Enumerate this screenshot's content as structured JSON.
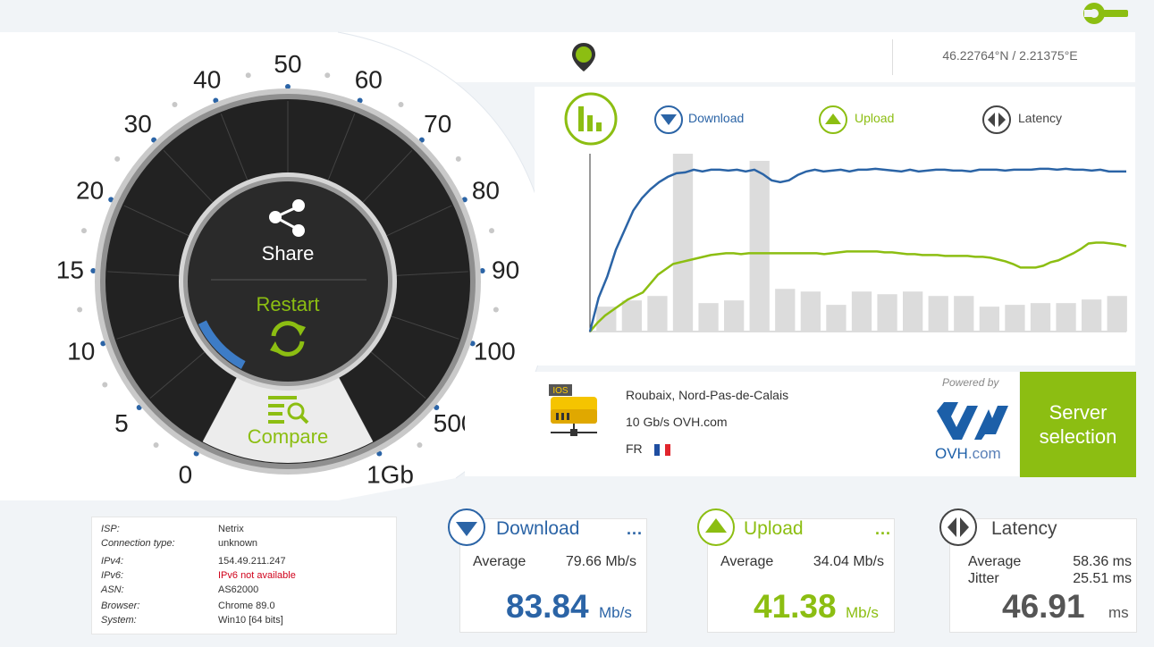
{
  "location": {
    "coords": "46.22764°N / 2.21375°E"
  },
  "gauge": {
    "labels": [
      "0",
      "5",
      "10",
      "15",
      "20",
      "30",
      "40",
      "50",
      "60",
      "70",
      "80",
      "90",
      "100",
      "500",
      "1Gb"
    ],
    "share_label": "Share",
    "restart_label": "Restart",
    "compare_label": "Compare",
    "progress": 0.12
  },
  "chart": {
    "legend": {
      "download": "Download",
      "upload": "Upload",
      "latency": "Latency"
    },
    "colors": {
      "download": "#2b64a6",
      "upload": "#8cbe12",
      "latency": "#444444",
      "bars": "#dcdcdc"
    }
  },
  "chart_data": {
    "type": "line",
    "series": [
      {
        "name": "Download",
        "values": [
          0,
          38,
          62,
          92,
          114,
          136,
          150,
          160,
          168,
          174,
          178,
          179,
          182,
          180,
          182,
          182,
          181,
          182,
          180,
          182,
          177,
          170,
          168,
          170,
          176,
          180,
          182,
          180,
          181,
          182,
          180,
          182,
          182,
          183,
          182,
          181,
          180,
          182,
          180,
          181,
          182,
          182,
          181,
          181,
          180,
          182,
          182,
          182,
          181,
          182,
          182,
          182,
          183,
          183,
          182,
          183,
          182,
          182,
          181,
          182,
          180,
          180,
          180
        ]
      },
      {
        "name": "Upload",
        "values": [
          0,
          10,
          18,
          24,
          30,
          36,
          40,
          44,
          54,
          64,
          70,
          76,
          78,
          80,
          82,
          84,
          86,
          87,
          88,
          88,
          87,
          88,
          88,
          88,
          88,
          88,
          88,
          88,
          88,
          88,
          88,
          87,
          88,
          89,
          90,
          90,
          90,
          90,
          90,
          89,
          89,
          88,
          87,
          87,
          86,
          86,
          86,
          85,
          85,
          85,
          85,
          84,
          84,
          83,
          81,
          79,
          76,
          72,
          72,
          72,
          74,
          78,
          80,
          84,
          88,
          93,
          99,
          100,
          100,
          99,
          98,
          96
        ]
      },
      {
        "name": "Latency",
        "values": [
          28,
          35,
          40,
          200,
          32,
          35,
          192,
          48,
          45,
          30,
          45,
          42,
          45,
          40,
          40,
          28,
          30,
          32,
          32,
          36,
          40
        ]
      }
    ],
    "ylim": [
      0,
      200
    ]
  },
  "server": {
    "city": "Roubaix, Nord-Pas-de-Calais",
    "speed": "10 Gb/s OVH.com",
    "country": "FR",
    "icon_label": "IOS",
    "powered_by": "Powered by",
    "provider_name": "OVH",
    "provider_domain": ".com",
    "button_label_1": "Server",
    "button_label_2": "selection"
  },
  "info": {
    "rows": [
      {
        "label": "ISP:",
        "value": "Netrix"
      },
      {
        "label": "Connection type:",
        "value": "unknown"
      },
      {
        "label": "IPv4:",
        "value": "154.49.211.247"
      },
      {
        "label": "IPv6:",
        "value": "IPv6 not available"
      },
      {
        "label": "ASN:",
        "value": "AS62000"
      },
      {
        "label": "Browser:",
        "value": "Chrome 89.0"
      },
      {
        "label": "System:",
        "value": "Win10 [64 bits]"
      }
    ]
  },
  "stats": {
    "download": {
      "title": "Download",
      "dots": "...",
      "avg_label": "Average",
      "avg_value": "79.66 Mb/s",
      "value": "83.84",
      "unit": "Mb/s"
    },
    "upload": {
      "title": "Upload",
      "dots": "...",
      "avg_label": "Average",
      "avg_value": "34.04 Mb/s",
      "value": "41.38",
      "unit": "Mb/s"
    },
    "latency": {
      "title": "Latency",
      "avg_label": "Average",
      "avg_value": "58.36 ms",
      "jitter_label": "Jitter",
      "jitter_value": "25.51 ms",
      "value": "46.91",
      "unit": "ms"
    }
  }
}
